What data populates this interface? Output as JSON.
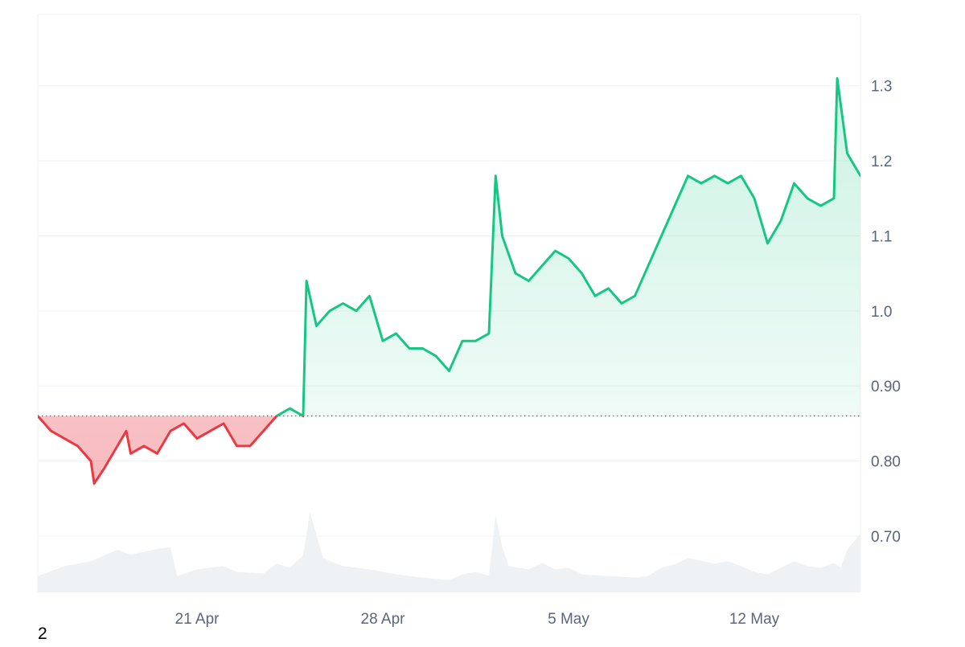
{
  "footer_text": "2",
  "colors": {
    "up_line": "#16c784",
    "down_line": "#ea3943",
    "up_fill": "#16c784",
    "down_fill": "#ea3943",
    "volume_fill": "#eff2f5",
    "grid": "#eff2f5",
    "baseline_dots": "#58667e",
    "tick_text": "#58667e"
  },
  "chart_data": {
    "type": "area",
    "title": "",
    "xlabel": "",
    "ylabel": "",
    "y_axis_position": "right",
    "grid": true,
    "baseline_value": 0.86,
    "ylim": [
      0.625,
      1.395
    ],
    "xlim": [
      "2025-04-15T00:00",
      "2025-05-16T00:00"
    ],
    "y_ticks": [
      {
        "value": 1.3,
        "label": "1.3"
      },
      {
        "value": 1.2,
        "label": "1.2"
      },
      {
        "value": 1.1,
        "label": "1.1"
      },
      {
        "value": 1.0,
        "label": "1.0"
      },
      {
        "value": 0.9,
        "label": "0.90"
      },
      {
        "value": 0.8,
        "label": "0.80"
      },
      {
        "value": 0.7,
        "label": "0.70"
      }
    ],
    "x_ticks": [
      {
        "value": "2025-04-21",
        "label": "21 Apr"
      },
      {
        "value": "2025-04-28",
        "label": "28 Apr"
      },
      {
        "value": "2025-05-05",
        "label": "5 May"
      },
      {
        "value": "2025-05-12",
        "label": "12 May"
      }
    ],
    "series": [
      {
        "type": "line",
        "x": [
          "2025-04-15T00:00",
          "2025-04-15T12:00",
          "2025-04-16T00:00",
          "2025-04-16T12:00",
          "2025-04-17T00:00",
          "2025-04-17T03:00",
          "2025-04-17T12:00",
          "2025-04-18T00:00",
          "2025-04-18T08:00",
          "2025-04-18T12:00",
          "2025-04-19T00:00",
          "2025-04-19T12:00",
          "2025-04-20T00:00",
          "2025-04-20T12:00",
          "2025-04-21T00:00",
          "2025-04-21T12:00",
          "2025-04-22T00:00",
          "2025-04-22T12:00",
          "2025-04-23T00:00",
          "2025-04-23T12:00",
          "2025-04-24T00:00",
          "2025-04-24T12:00",
          "2025-04-25T00:00",
          "2025-04-25T03:00",
          "2025-04-25T12:00",
          "2025-04-26T00:00",
          "2025-04-26T12:00",
          "2025-04-27T00:00",
          "2025-04-27T12:00",
          "2025-04-28T00:00",
          "2025-04-28T12:00",
          "2025-04-29T00:00",
          "2025-04-29T12:00",
          "2025-04-30T00:00",
          "2025-04-30T12:00",
          "2025-05-01T00:00",
          "2025-05-01T12:00",
          "2025-05-02T00:00",
          "2025-05-02T06:00",
          "2025-05-02T12:00",
          "2025-05-03T00:00",
          "2025-05-03T12:00",
          "2025-05-04T00:00",
          "2025-05-04T12:00",
          "2025-05-05T00:00",
          "2025-05-05T12:00",
          "2025-05-06T00:00",
          "2025-05-06T12:00",
          "2025-05-07T00:00",
          "2025-05-07T12:00",
          "2025-05-08T00:00",
          "2025-05-08T12:00",
          "2025-05-09T00:00",
          "2025-05-09T12:00",
          "2025-05-10T00:00",
          "2025-05-10T12:00",
          "2025-05-11T00:00",
          "2025-05-11T12:00",
          "2025-05-12T00:00",
          "2025-05-12T12:00",
          "2025-05-13T00:00",
          "2025-05-13T12:00",
          "2025-05-14T00:00",
          "2025-05-14T12:00",
          "2025-05-15T00:00",
          "2025-05-15T03:00",
          "2025-05-15T12:00",
          "2025-05-16T00:00"
        ],
        "y": [
          0.86,
          0.84,
          0.83,
          0.82,
          0.8,
          0.77,
          0.79,
          0.82,
          0.84,
          0.81,
          0.82,
          0.81,
          0.84,
          0.85,
          0.83,
          0.84,
          0.85,
          0.82,
          0.82,
          0.84,
          0.86,
          0.87,
          0.86,
          1.04,
          0.98,
          1.0,
          1.01,
          1.0,
          1.02,
          0.96,
          0.97,
          0.95,
          0.95,
          0.94,
          0.92,
          0.96,
          0.96,
          0.97,
          1.18,
          1.1,
          1.05,
          1.04,
          1.06,
          1.08,
          1.07,
          1.05,
          1.02,
          1.03,
          1.01,
          1.02,
          1.06,
          1.1,
          1.14,
          1.18,
          1.17,
          1.18,
          1.17,
          1.18,
          1.15,
          1.09,
          1.12,
          1.17,
          1.15,
          1.14,
          1.15,
          1.31,
          1.21,
          1.18
        ]
      },
      {
        "type": "volume",
        "x": [
          "2025-04-15T00:00",
          "2025-04-16T00:00",
          "2025-04-17T00:00",
          "2025-04-17T12:00",
          "2025-04-18T00:00",
          "2025-04-18T12:00",
          "2025-04-19T12:00",
          "2025-04-20T00:00",
          "2025-04-20T06:00",
          "2025-04-21T00:00",
          "2025-04-22T00:00",
          "2025-04-22T12:00",
          "2025-04-23T12:00",
          "2025-04-24T00:00",
          "2025-04-24T12:00",
          "2025-04-25T00:00",
          "2025-04-25T06:00",
          "2025-04-25T18:00",
          "2025-04-26T12:00",
          "2025-04-27T12:00",
          "2025-04-28T12:00",
          "2025-04-29T12:00",
          "2025-04-30T12:00",
          "2025-05-01T00:00",
          "2025-05-01T12:00",
          "2025-05-02T00:00",
          "2025-05-02T06:00",
          "2025-05-02T12:00",
          "2025-05-02T18:00",
          "2025-05-03T12:00",
          "2025-05-04T00:00",
          "2025-05-04T12:00",
          "2025-05-05T00:00",
          "2025-05-05T12:00",
          "2025-05-06T12:00",
          "2025-05-07T12:00",
          "2025-05-08T00:00",
          "2025-05-08T12:00",
          "2025-05-09T00:00",
          "2025-05-09T12:00",
          "2025-05-10T12:00",
          "2025-05-11T00:00",
          "2025-05-11T12:00",
          "2025-05-12T00:00",
          "2025-05-12T12:00",
          "2025-05-13T00:00",
          "2025-05-13T12:00",
          "2025-05-14T00:00",
          "2025-05-14T12:00",
          "2025-05-15T00:00",
          "2025-05-15T06:00",
          "2025-05-15T12:00",
          "2025-05-16T00:00"
        ],
        "y": [
          0.2,
          0.32,
          0.38,
          0.45,
          0.52,
          0.46,
          0.53,
          0.55,
          0.2,
          0.28,
          0.32,
          0.25,
          0.23,
          0.35,
          0.3,
          0.45,
          0.98,
          0.42,
          0.32,
          0.28,
          0.22,
          0.18,
          0.15,
          0.22,
          0.25,
          0.2,
          0.95,
          0.55,
          0.32,
          0.28,
          0.36,
          0.28,
          0.3,
          0.22,
          0.2,
          0.18,
          0.2,
          0.3,
          0.34,
          0.42,
          0.35,
          0.38,
          0.32,
          0.25,
          0.22,
          0.3,
          0.38,
          0.32,
          0.3,
          0.36,
          0.3,
          0.52,
          0.72
        ]
      }
    ]
  }
}
